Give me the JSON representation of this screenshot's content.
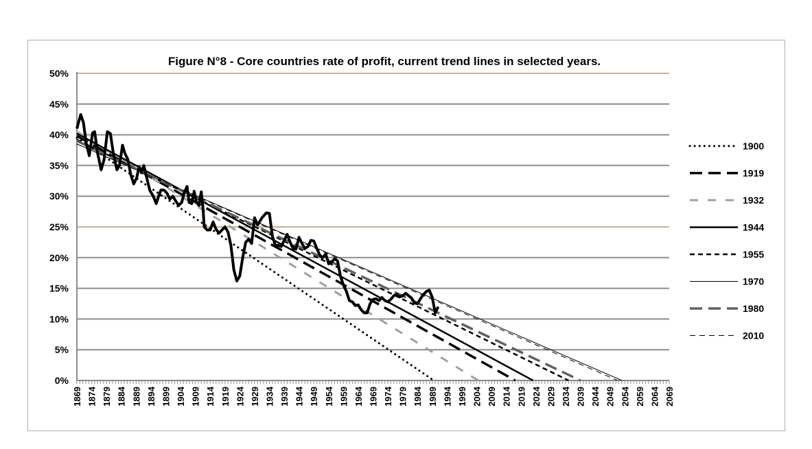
{
  "chart_data": {
    "type": "line",
    "title": "Figure N°8 -  Core countries rate of profit, current trend lines in selected years.",
    "xlabel": "",
    "ylabel": "",
    "xlim": [
      1869,
      2069
    ],
    "ylim": [
      0,
      50
    ],
    "x_tick_step": 5,
    "y_ticks": [
      "0%",
      "5%",
      "10%",
      "15%",
      "20%",
      "25%",
      "30%",
      "35%",
      "40%",
      "45%",
      "50%"
    ],
    "grid": true,
    "legend_position": "right",
    "highlight_gridline_color": "#c8b28e",
    "gridline_color": "#8c8c8c",
    "actual_series": {
      "name": "Rate of profit",
      "color": "#000000",
      "points": [
        [
          1869,
          41
        ],
        [
          1870.3,
          43.3
        ],
        [
          1871.2,
          42
        ],
        [
          1872.2,
          38.5
        ],
        [
          1873.2,
          36.6
        ],
        [
          1874.3,
          40.3
        ],
        [
          1875,
          40.5
        ],
        [
          1876,
          37
        ],
        [
          1877.2,
          34.3
        ],
        [
          1878.2,
          36
        ],
        [
          1879.3,
          40.5
        ],
        [
          1880.3,
          40.2
        ],
        [
          1881.3,
          37
        ],
        [
          1882.5,
          34.3
        ],
        [
          1883.4,
          35
        ],
        [
          1884.4,
          38.3
        ],
        [
          1885.2,
          37
        ],
        [
          1886.2,
          36
        ],
        [
          1887.2,
          33.5
        ],
        [
          1888.2,
          32
        ],
        [
          1889.2,
          33
        ],
        [
          1890,
          34.8
        ],
        [
          1890.8,
          33.8
        ],
        [
          1891.6,
          35
        ],
        [
          1892.6,
          33
        ],
        [
          1893.6,
          31
        ],
        [
          1894.8,
          30
        ],
        [
          1895.8,
          28.8
        ],
        [
          1896.6,
          30
        ],
        [
          1897.4,
          31
        ],
        [
          1898.4,
          31
        ],
        [
          1899.4,
          30.5
        ],
        [
          1900.4,
          29.5
        ],
        [
          1901.4,
          30
        ],
        [
          1902.4,
          29.2
        ],
        [
          1903.4,
          28.5
        ],
        [
          1904.4,
          29
        ],
        [
          1905.2,
          30.5
        ],
        [
          1906.2,
          31.6
        ],
        [
          1906.9,
          29
        ],
        [
          1907.8,
          28.8
        ],
        [
          1908.6,
          30.8
        ],
        [
          1909.4,
          29
        ],
        [
          1910.2,
          28.5
        ],
        [
          1911,
          30.7
        ],
        [
          1911.6,
          28
        ],
        [
          1912,
          25
        ],
        [
          1913,
          24.5
        ],
        [
          1914,
          24.5
        ],
        [
          1915,
          25.8
        ],
        [
          1916,
          24.6
        ],
        [
          1917,
          24
        ],
        [
          1918,
          24.5
        ],
        [
          1919,
          25
        ],
        [
          1920,
          24.2
        ],
        [
          1921,
          22
        ],
        [
          1922,
          18
        ],
        [
          1923,
          16.2
        ],
        [
          1924,
          17
        ],
        [
          1925,
          20
        ],
        [
          1926,
          22.5
        ],
        [
          1927,
          23
        ],
        [
          1928,
          22.3
        ],
        [
          1929,
          26.5
        ],
        [
          1930,
          25.3
        ],
        [
          1931.5,
          26.5
        ],
        [
          1933,
          27.3
        ],
        [
          1934,
          27.2
        ],
        [
          1935,
          23.5
        ],
        [
          1936,
          22
        ],
        [
          1937,
          22
        ],
        [
          1938,
          21.8
        ],
        [
          1939,
          22.8
        ],
        [
          1940,
          23.8
        ],
        [
          1941,
          22.5
        ],
        [
          1942,
          21.5
        ],
        [
          1943,
          21.4
        ],
        [
          1944,
          23.3
        ],
        [
          1945,
          22.3
        ],
        [
          1946,
          21.5
        ],
        [
          1947,
          21.8
        ],
        [
          1948,
          22.8
        ],
        [
          1949,
          22.7
        ],
        [
          1950,
          21.5
        ],
        [
          1951,
          20.4
        ],
        [
          1952,
          20
        ],
        [
          1953,
          20.6
        ],
        [
          1954,
          19
        ],
        [
          1955,
          19.3
        ],
        [
          1956,
          19.8
        ],
        [
          1957,
          19.5
        ],
        [
          1958,
          17
        ],
        [
          1959,
          15.5
        ],
        [
          1960,
          14.5
        ],
        [
          1961,
          13
        ],
        [
          1962,
          12.8
        ],
        [
          1963,
          12.2
        ],
        [
          1964,
          12.3
        ],
        [
          1965,
          11.5
        ],
        [
          1966,
          11
        ],
        [
          1967,
          11
        ],
        [
          1968,
          12.5
        ],
        [
          1969,
          13.2
        ],
        [
          1970,
          13.3
        ],
        [
          1971,
          13
        ],
        [
          1972,
          13.5
        ],
        [
          1973,
          13
        ],
        [
          1974,
          12.8
        ],
        [
          1975,
          13.2
        ],
        [
          1976,
          13.8
        ],
        [
          1977,
          14
        ],
        [
          1978,
          13.6
        ],
        [
          1979,
          13.8
        ],
        [
          1980,
          14.2
        ],
        [
          1981,
          13.8
        ],
        [
          1982,
          13.4
        ],
        [
          1983,
          12.6
        ],
        [
          1984,
          12.5
        ],
        [
          1985,
          13.3
        ],
        [
          1986,
          14
        ],
        [
          1987,
          14.5
        ],
        [
          1988,
          14.7
        ],
        [
          1989,
          13.5
        ],
        [
          1990,
          11
        ],
        [
          1991,
          12
        ]
      ]
    },
    "series": [
      {
        "name": "1900",
        "start_value": 39.5,
        "zero_year": 1989.5,
        "color": "#000000",
        "style": "dotted"
      },
      {
        "name": "1919",
        "start_value": 39.8,
        "zero_year": 2017,
        "color": "#000000",
        "style": "long-dash"
      },
      {
        "name": "1932",
        "start_value": 40.5,
        "zero_year": 2004.5,
        "color": "#a0a0a0",
        "style": "dash"
      },
      {
        "name": "1944",
        "start_value": 40.2,
        "zero_year": 2023,
        "color": "#000000",
        "style": "solid"
      },
      {
        "name": "1955",
        "start_value": 39.2,
        "zero_year": 2035,
        "color": "#000000",
        "style": "short-dash"
      },
      {
        "name": "1970",
        "start_value": 38.5,
        "zero_year": 2053,
        "color": "#000000",
        "style": "thin"
      },
      {
        "name": "1980",
        "start_value": 39,
        "zero_year": 2039,
        "color": "#606060",
        "style": "long-dash"
      },
      {
        "name": "2010",
        "start_value": 38.5,
        "zero_year": 2051.5,
        "color": "#000000",
        "style": "thin-dash"
      }
    ]
  }
}
